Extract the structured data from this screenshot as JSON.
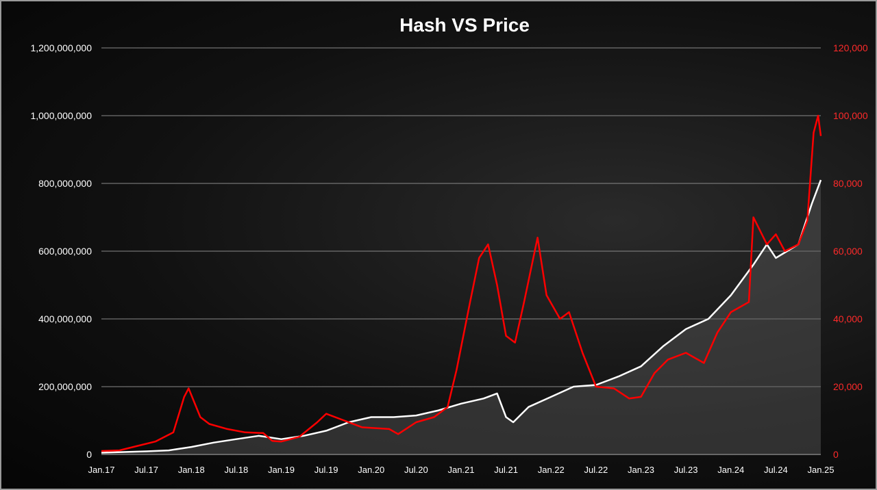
{
  "chart_data": {
    "type": "line",
    "title": "Hash VS Price",
    "x_tick_labels": [
      "Jan.17",
      "Jul.17",
      "Jan.18",
      "Jul.18",
      "Jan.19",
      "Jul.19",
      "Jan.20",
      "Jul.20",
      "Jan.21",
      "Jul.21",
      "Jan.22",
      "Jul.22",
      "Jan.23",
      "Jul.23",
      "Jan.24",
      "Jul.24",
      "Jan.25"
    ],
    "y_left": {
      "range": [
        0,
        1200000000
      ],
      "tick_labels": [
        "0",
        "200,000,000",
        "400,000,000",
        "600,000,000",
        "800,000,000",
        "1,000,000,000",
        "1,200,000,000"
      ]
    },
    "y_right": {
      "range": [
        0,
        120000
      ],
      "tick_labels": [
        "0",
        "20,000",
        "40,000",
        "60,000",
        "80,000",
        "100,000",
        "120,000"
      ]
    },
    "grid": true,
    "legend": "none",
    "colors": {
      "hash": "#ffffff",
      "price": "#ff0000",
      "hash_area": "#5a5a5a",
      "grid": "#8a8a8a"
    },
    "series": [
      {
        "axis": "left",
        "x": [
          2017.0,
          2017.25,
          2017.5,
          2017.75,
          2018.0,
          2018.25,
          2018.5,
          2018.75,
          2019.0,
          2019.25,
          2019.5,
          2019.75,
          2020.0,
          2020.25,
          2020.5,
          2020.75,
          2021.0,
          2021.25,
          2021.4,
          2021.5,
          2021.58,
          2021.75,
          2022.0,
          2022.25,
          2022.5,
          2022.75,
          2023.0,
          2023.25,
          2023.5,
          2023.75,
          2024.0,
          2024.25,
          2024.4,
          2024.5,
          2024.75,
          2024.9,
          2025.0
        ],
        "values": [
          5000000,
          7000000,
          9000000,
          12000000,
          22000000,
          35000000,
          45000000,
          55000000,
          45000000,
          55000000,
          70000000,
          95000000,
          110000000,
          110000000,
          115000000,
          130000000,
          150000000,
          165000000,
          180000000,
          110000000,
          95000000,
          140000000,
          170000000,
          200000000,
          205000000,
          230000000,
          260000000,
          320000000,
          370000000,
          400000000,
          470000000,
          560000000,
          620000000,
          580000000,
          620000000,
          740000000,
          810000000
        ]
      },
      {
        "axis": "right",
        "x": [
          2017.0,
          2017.2,
          2017.4,
          2017.6,
          2017.8,
          2017.92,
          2017.97,
          2018.1,
          2018.2,
          2018.4,
          2018.6,
          2018.8,
          2018.9,
          2019.0,
          2019.2,
          2019.4,
          2019.5,
          2019.7,
          2019.9,
          2020.2,
          2020.3,
          2020.5,
          2020.7,
          2020.85,
          2020.95,
          2021.1,
          2021.2,
          2021.3,
          2021.4,
          2021.5,
          2021.6,
          2021.7,
          2021.85,
          2021.95,
          2022.1,
          2022.2,
          2022.35,
          2022.5,
          2022.7,
          2022.87,
          2023.0,
          2023.15,
          2023.3,
          2023.5,
          2023.7,
          2023.85,
          2024.0,
          2024.2,
          2024.25,
          2024.4,
          2024.5,
          2024.6,
          2024.75,
          2024.85,
          2024.92,
          2024.97,
          2025.0
        ],
        "values": [
          1000,
          1200,
          2500,
          3800,
          6500,
          17000,
          19500,
          11000,
          9000,
          7500,
          6500,
          6300,
          4000,
          3800,
          5200,
          9500,
          12000,
          10000,
          8000,
          7500,
          6000,
          9500,
          11000,
          14000,
          25000,
          45000,
          58000,
          62000,
          50000,
          35000,
          33000,
          45000,
          64000,
          47000,
          40000,
          42000,
          30000,
          20000,
          19500,
          16500,
          17000,
          24000,
          28000,
          30000,
          27000,
          36000,
          42000,
          45000,
          70000,
          62000,
          65000,
          60000,
          62000,
          69000,
          95000,
          100000,
          94000
        ]
      }
    ]
  }
}
